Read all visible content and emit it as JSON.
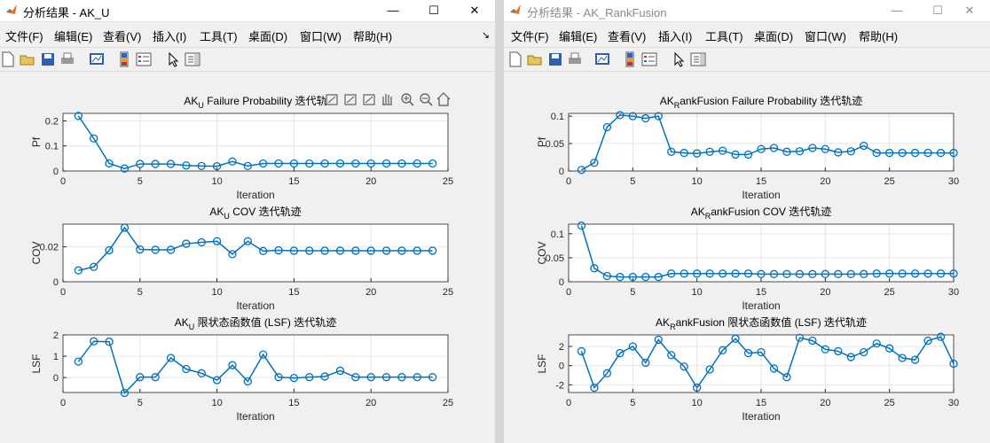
{
  "windows": [
    {
      "title": "分析结果 - AK_U",
      "menu": [
        "文件(F)",
        "编辑(E)",
        "查看(V)",
        "插入(I)",
        "工具(T)",
        "桌面(D)",
        "窗口(W)",
        "帮助(H)"
      ],
      "dock_arrow": "↘"
    },
    {
      "title": "分析结果 - AK_RankFusion",
      "menu": [
        "文件(F)",
        "编辑(E)",
        "查看(V)",
        "插入(I)",
        "工具(T)",
        "桌面(D)",
        "窗口(W)",
        "帮助(H)"
      ]
    }
  ],
  "window_controls": {
    "minimize": "—",
    "maximize": "☐",
    "close": "✕"
  },
  "toolbar_icons": [
    "new-figure-icon",
    "open-file-icon",
    "save-icon",
    "print-icon",
    "link-plot-icon",
    "colorbar-icon",
    "legend-icon",
    "select-pointer-icon",
    "property-inspector-icon"
  ],
  "axes_toolbar_icons": [
    "brush-icon",
    "data-cursor-icon",
    "rotate-icon",
    "pan-icon",
    "zoom-in-icon",
    "zoom-out-icon",
    "home-icon"
  ],
  "chart_data": [
    {
      "type": "line",
      "title_parts": [
        "AK",
        "U",
        " Failure Probability 迭代轨"
      ],
      "xlabel": "Iteration",
      "ylabel": "Pf",
      "xlim": [
        0,
        25
      ],
      "ylim": [
        0,
        0.23
      ],
      "xticks": [
        "0",
        "5",
        "10",
        "15",
        "20",
        "25"
      ],
      "yticks": [
        "0",
        "0.1",
        "0.2"
      ],
      "ytick_values": [
        0,
        0.1,
        0.2
      ],
      "xtick_values": [
        0,
        5,
        10,
        15,
        20,
        25
      ],
      "x": [
        1,
        2,
        3,
        4,
        5,
        6,
        7,
        8,
        9,
        10,
        11,
        12,
        13,
        14,
        15,
        16,
        17,
        18,
        19,
        20,
        21,
        22,
        23,
        24
      ],
      "y": [
        0.22,
        0.13,
        0.03,
        0.01,
        0.028,
        0.028,
        0.028,
        0.022,
        0.02,
        0.019,
        0.038,
        0.02,
        0.03,
        0.03,
        0.03,
        0.03,
        0.03,
        0.03,
        0.03,
        0.03,
        0.03,
        0.03,
        0.03,
        0.03
      ],
      "grid": true
    },
    {
      "type": "line",
      "title_parts": [
        "AK",
        "U",
        " COV 迭代轨迹"
      ],
      "xlabel": "Iteration",
      "ylabel": "COV",
      "xlim": [
        0,
        25
      ],
      "ylim": [
        0,
        0.033
      ],
      "xticks": [
        "0",
        "5",
        "10",
        "15",
        "20",
        "25"
      ],
      "yticks": [
        "0",
        "0.02"
      ],
      "ytick_values": [
        0,
        0.02
      ],
      "xtick_values": [
        0,
        5,
        10,
        15,
        20,
        25
      ],
      "x": [
        1,
        2,
        3,
        4,
        5,
        6,
        7,
        8,
        9,
        10,
        11,
        12,
        13,
        14,
        15,
        16,
        17,
        18,
        19,
        20,
        21,
        22,
        23,
        24
      ],
      "y": [
        0.0065,
        0.0085,
        0.018,
        0.031,
        0.0185,
        0.0183,
        0.0183,
        0.0218,
        0.0226,
        0.0232,
        0.0158,
        0.0232,
        0.0176,
        0.018,
        0.0178,
        0.0178,
        0.0178,
        0.0178,
        0.0178,
        0.0178,
        0.0178,
        0.0178,
        0.0178,
        0.0178
      ],
      "grid": true
    },
    {
      "type": "line",
      "title_parts": [
        "AK",
        "U",
        " 限状态函数值 (LSF) 迭代轨迹"
      ],
      "xlabel": "Iteration",
      "ylabel": "LSF",
      "xlim": [
        0,
        25
      ],
      "ylim": [
        -0.7,
        2
      ],
      "xticks": [
        "0",
        "5",
        "10",
        "15",
        "20",
        "25"
      ],
      "yticks": [
        "0",
        "1",
        "2"
      ],
      "ytick_values": [
        0,
        1,
        2
      ],
      "xtick_values": [
        0,
        5,
        10,
        15,
        20,
        25
      ],
      "x": [
        1,
        2,
        3,
        4,
        5,
        6,
        7,
        8,
        9,
        10,
        11,
        12,
        13,
        14,
        15,
        16,
        17,
        18,
        19,
        20,
        21,
        22,
        23,
        24
      ],
      "y": [
        0.75,
        1.7,
        1.68,
        -0.72,
        0.02,
        0.02,
        0.92,
        0.4,
        0.2,
        -0.12,
        0.58,
        -0.18,
        1.08,
        0.02,
        -0.02,
        0.02,
        0.05,
        0.32,
        0.02,
        0.02,
        0.02,
        0.02,
        0.02,
        0.02
      ],
      "grid": true
    },
    {
      "type": "line",
      "title_parts": [
        "AK",
        "R",
        "ankFusion Failure Probability 迭代轨迹"
      ],
      "xlabel": "Iteration",
      "ylabel": "Pf",
      "xlim": [
        0,
        30
      ],
      "ylim": [
        0,
        0.105
      ],
      "xticks": [
        "0",
        "5",
        "10",
        "15",
        "20",
        "25",
        "30"
      ],
      "yticks": [
        "0",
        "0.05",
        "0.1"
      ],
      "ytick_values": [
        0,
        0.05,
        0.1
      ],
      "xtick_values": [
        0,
        5,
        10,
        15,
        20,
        25,
        30
      ],
      "x": [
        1,
        2,
        3,
        4,
        5,
        6,
        7,
        8,
        9,
        10,
        11,
        12,
        13,
        14,
        15,
        16,
        17,
        18,
        19,
        20,
        21,
        22,
        23,
        24,
        25,
        26,
        27,
        28,
        29,
        30
      ],
      "y": [
        0.002,
        0.015,
        0.08,
        0.102,
        0.1,
        0.096,
        0.1,
        0.035,
        0.033,
        0.032,
        0.035,
        0.037,
        0.03,
        0.03,
        0.04,
        0.042,
        0.035,
        0.036,
        0.042,
        0.04,
        0.034,
        0.036,
        0.046,
        0.033,
        0.033,
        0.033,
        0.033,
        0.033,
        0.033,
        0.033
      ],
      "grid": true
    },
    {
      "type": "line",
      "title_parts": [
        "AK",
        "R",
        "ankFusion COV 迭代轨迹"
      ],
      "xlabel": "Iteration",
      "ylabel": "COV",
      "xlim": [
        0,
        30
      ],
      "ylim": [
        0,
        0.12
      ],
      "xticks": [
        "0",
        "5",
        "10",
        "15",
        "20",
        "25",
        "30"
      ],
      "yticks": [
        "0",
        "0.05",
        "0.1"
      ],
      "ytick_values": [
        0,
        0.05,
        0.1
      ],
      "xtick_values": [
        0,
        5,
        10,
        15,
        20,
        25,
        30
      ],
      "x": [
        1,
        2,
        3,
        4,
        5,
        6,
        7,
        8,
        9,
        10,
        11,
        12,
        13,
        14,
        15,
        16,
        17,
        18,
        19,
        20,
        21,
        22,
        23,
        24,
        25,
        26,
        27,
        28,
        29,
        30
      ],
      "y": [
        0.117,
        0.028,
        0.012,
        0.01,
        0.01,
        0.01,
        0.01,
        0.017,
        0.017,
        0.017,
        0.017,
        0.017,
        0.017,
        0.017,
        0.016,
        0.016,
        0.016,
        0.016,
        0.016,
        0.016,
        0.016,
        0.016,
        0.016,
        0.017,
        0.017,
        0.017,
        0.017,
        0.017,
        0.017,
        0.017
      ],
      "grid": true
    },
    {
      "type": "line",
      "title_parts": [
        "AK",
        "R",
        "ankFusion 限状态函数值 (LSF) 迭代轨迹"
      ],
      "xlabel": "Iteration",
      "ylabel": "LSF",
      "xlim": [
        0,
        30
      ],
      "ylim": [
        -2.8,
        3.2
      ],
      "xticks": [
        "0",
        "5",
        "10",
        "15",
        "20",
        "25",
        "30"
      ],
      "yticks": [
        "-2",
        "0",
        "2"
      ],
      "ytick_values": [
        -2,
        0,
        2
      ],
      "xtick_values": [
        0,
        5,
        10,
        15,
        20,
        25,
        30
      ],
      "x": [
        1,
        2,
        3,
        4,
        5,
        6,
        7,
        8,
        9,
        10,
        11,
        12,
        13,
        14,
        15,
        16,
        17,
        18,
        19,
        20,
        21,
        22,
        23,
        24,
        25,
        26,
        27,
        28,
        29,
        30
      ],
      "y": [
        1.5,
        -2.3,
        -0.8,
        1.3,
        2.0,
        0.3,
        2.7,
        1.1,
        -0.1,
        -2.3,
        -0.4,
        1.6,
        2.8,
        1.3,
        1.4,
        -0.3,
        -1.2,
        2.9,
        2.6,
        1.7,
        1.5,
        0.9,
        1.4,
        2.3,
        1.8,
        0.8,
        0.6,
        2.6,
        3.0,
        0.2
      ],
      "grid": true
    }
  ],
  "colors": {
    "line": "#0072bd",
    "grid": "#e6e6e6",
    "axis": "#262626"
  }
}
